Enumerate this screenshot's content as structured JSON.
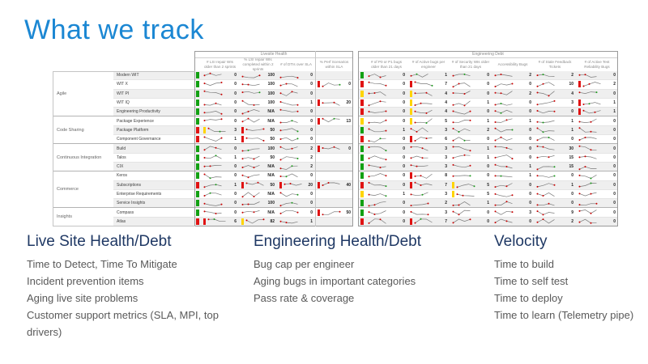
{
  "title": "What we track",
  "colors": {
    "title_blue": "#1b87d3",
    "heading_navy": "#1f3864",
    "body_gray": "#595959",
    "green": "#12a012",
    "red": "#e01212",
    "yellow": "#ffd400"
  },
  "dashboard": {
    "header_groups": [
      {
        "label": "Livesite Health",
        "columns": [
          "# LSI repair WIs older than 2 sprints",
          "% LSI repair WIs completed within 2 sprints",
          "# of DTIs over SLA",
          "% Perf Scenarios within SLA"
        ]
      },
      {
        "label": "Engineering Debt",
        "columns": [
          "# of P0 or P1 bugs older than 21 days",
          "# of Active bugs per engineer",
          "# of Security WIs older than 21 days",
          "Accessibility Bugs",
          "# of Stale Feedback Tickets",
          "# of Active Test Reliability Bugs"
        ]
      }
    ],
    "groups": [
      {
        "label": "Agile",
        "teams": [
          "Modern WIT",
          "WIT X",
          "WIT PI",
          "WIT IQ",
          "Engineering Productivity"
        ]
      },
      {
        "label": "Code Sharing",
        "teams": [
          "Package Experience",
          "Package Platform",
          "Component Governance"
        ]
      },
      {
        "label": "Continuous Integration",
        "teams": [
          "Build",
          "Talos",
          "CIX"
        ]
      },
      {
        "label": "Commerce",
        "teams": [
          "Keros",
          "Subscriptions",
          "Enterprise Requirements",
          "Service Insights"
        ]
      },
      {
        "label": "Insights",
        "teams": [
          "Compass",
          "Atlas"
        ]
      }
    ],
    "rows": [
      {
        "team": "Modern WIT",
        "ls_status": "green",
        "eng_status": "green",
        "ls": [
          {
            "v": "0"
          },
          {
            "v": "100"
          },
          {
            "v": "0"
          },
          null
        ],
        "eng": [
          {
            "v": "0"
          },
          {
            "v": "1"
          },
          {
            "v": "0"
          },
          {
            "v": "2"
          },
          {
            "v": "2"
          },
          {
            "v": "0"
          }
        ]
      },
      {
        "team": "WIT X",
        "ls_status": "green",
        "eng_status": "red",
        "ls": [
          {
            "v": "0"
          },
          {
            "v": "100"
          },
          {
            "v": "0"
          },
          {
            "v": "0",
            "alert": "red"
          }
        ],
        "eng": [
          {
            "v": "0"
          },
          {
            "v": "7",
            "alert": "red"
          },
          {
            "v": "0"
          },
          {
            "v": "0"
          },
          {
            "v": "10"
          },
          {
            "v": "2",
            "alert": "red"
          }
        ]
      },
      {
        "team": "WIT PI",
        "ls_status": "green",
        "eng_status": "yellow",
        "ls": [
          {
            "v": "0"
          },
          {
            "v": "100"
          },
          {
            "v": "0"
          },
          null
        ],
        "eng": [
          {
            "v": "0"
          },
          {
            "v": "4",
            "alert": "yellow"
          },
          {
            "v": "0"
          },
          {
            "v": "2"
          },
          {
            "v": "4"
          },
          {
            "v": "0"
          }
        ]
      },
      {
        "team": "WIT IQ",
        "ls_status": "green",
        "eng_status": "red",
        "ls": [
          {
            "v": "0"
          },
          {
            "v": "100"
          },
          {
            "v": "1"
          },
          {
            "v": "20",
            "alert": "red"
          }
        ],
        "eng": [
          {
            "v": "0"
          },
          {
            "v": "4",
            "alert": "yellow"
          },
          {
            "v": "1"
          },
          {
            "v": "0"
          },
          {
            "v": "3"
          },
          {
            "v": "1",
            "alert": "red"
          }
        ]
      },
      {
        "team": "Engineering Productivity",
        "ls_status": "green",
        "eng_status": "red",
        "ls": [
          {
            "v": "0"
          },
          {
            "v": "N/A"
          },
          {
            "v": "0"
          },
          null
        ],
        "eng": [
          {
            "v": "0"
          },
          {
            "v": "4",
            "alert": "yellow"
          },
          {
            "v": "0"
          },
          {
            "v": "0"
          },
          {
            "v": "0"
          },
          {
            "v": "1",
            "alert": "red"
          }
        ]
      },
      {
        "team": "Package Experience",
        "ls_status": "green",
        "eng_status": "yellow",
        "ls": [
          {
            "v": "0"
          },
          {
            "v": "N/A"
          },
          {
            "v": "0"
          },
          {
            "v": "13",
            "alert": "red"
          }
        ],
        "eng": [
          {
            "v": "0"
          },
          {
            "v": "5",
            "alert": "yellow"
          },
          {
            "v": "1"
          },
          {
            "v": "1"
          },
          {
            "v": "1"
          },
          {
            "v": "0"
          }
        ]
      },
      {
        "team": "Package Platform",
        "ls_status": "red",
        "eng_status": "green",
        "ls": [
          {
            "v": "3",
            "alert": "yellow"
          },
          {
            "v": "50",
            "alert": "red"
          },
          {
            "v": "0"
          },
          null
        ],
        "eng": [
          {
            "v": "1"
          },
          {
            "v": "3"
          },
          {
            "v": "2"
          },
          {
            "v": "0"
          },
          {
            "v": "1"
          },
          {
            "v": "0"
          }
        ]
      },
      {
        "team": "Component Governance",
        "ls_status": "red",
        "eng_status": "red",
        "ls": [
          {
            "v": "1"
          },
          {
            "v": "50",
            "alert": "red"
          },
          {
            "v": "0"
          },
          null
        ],
        "eng": [
          {
            "v": "0"
          },
          {
            "v": "6",
            "alert": "red"
          },
          {
            "v": "0"
          },
          {
            "v": "0"
          },
          {
            "v": "0"
          },
          {
            "v": "0"
          }
        ]
      },
      {
        "team": "Build",
        "ls_status": "green",
        "eng_status": "green",
        "ls": [
          {
            "v": "0"
          },
          {
            "v": "100"
          },
          {
            "v": "2"
          },
          {
            "v": "0",
            "alert": "red"
          }
        ],
        "eng": [
          {
            "v": "0"
          },
          {
            "v": "3"
          },
          {
            "v": "1"
          },
          {
            "v": "0"
          },
          {
            "v": "30"
          },
          {
            "v": "0"
          }
        ]
      },
      {
        "team": "Talos",
        "ls_status": "green",
        "eng_status": "green",
        "ls": [
          {
            "v": "1"
          },
          {
            "v": "50"
          },
          {
            "v": "2"
          },
          null
        ],
        "eng": [
          {
            "v": "0"
          },
          {
            "v": "3"
          },
          {
            "v": "1"
          },
          {
            "v": "0"
          },
          {
            "v": "15"
          },
          {
            "v": "0"
          }
        ]
      },
      {
        "team": "CIX",
        "ls_status": "green",
        "eng_status": "green",
        "ls": [
          {
            "v": "0"
          },
          {
            "v": "N/A"
          },
          {
            "v": "2"
          },
          null
        ],
        "eng": [
          {
            "v": "0"
          },
          {
            "v": "3"
          },
          {
            "v": "0"
          },
          {
            "v": "1"
          },
          {
            "v": "15"
          },
          {
            "v": "0"
          }
        ]
      },
      {
        "team": "Keros",
        "ls_status": "green",
        "eng_status": "green",
        "ls": [
          {
            "v": "0"
          },
          {
            "v": "N/A"
          },
          {
            "v": "0"
          },
          null
        ],
        "eng": [
          {
            "v": "0"
          },
          {
            "v": "8",
            "alert": "red"
          },
          {
            "v": "0"
          },
          {
            "v": "1"
          },
          {
            "v": "0"
          },
          {
            "v": "0"
          }
        ]
      },
      {
        "team": "Subscriptions",
        "ls_status": "red",
        "eng_status": "red",
        "ls": [
          {
            "v": "1"
          },
          {
            "v": "50",
            "alert": "red"
          },
          {
            "v": "20",
            "alert": "red"
          },
          {
            "v": "40",
            "alert": "red"
          }
        ],
        "eng": [
          {
            "v": "0"
          },
          {
            "v": "7",
            "alert": "red"
          },
          {
            "v": "5",
            "alert": "yellow"
          },
          {
            "v": "0"
          },
          {
            "v": "1"
          },
          {
            "v": "0"
          }
        ]
      },
      {
        "team": "Enterprise Requirements",
        "ls_status": "green",
        "eng_status": "yellow",
        "ls": [
          {
            "v": "0"
          },
          {
            "v": "N/A"
          },
          {
            "v": "0"
          },
          null
        ],
        "eng": [
          {
            "v": "1"
          },
          {
            "v": "3"
          },
          {
            "v": "5",
            "alert": "yellow"
          },
          {
            "v": "0"
          },
          {
            "v": "0"
          },
          {
            "v": "0"
          }
        ]
      },
      {
        "team": "Service Insights",
        "ls_status": "green",
        "eng_status": "green",
        "ls": [
          {
            "v": "0"
          },
          {
            "v": "100"
          },
          {
            "v": "0"
          },
          null
        ],
        "eng": [
          {
            "v": "0"
          },
          {
            "v": "2"
          },
          {
            "v": "1"
          },
          {
            "v": "0"
          },
          {
            "v": "0"
          },
          {
            "v": "0"
          }
        ]
      },
      {
        "team": "Compass",
        "ls_status": "green",
        "eng_status": "green",
        "ls": [
          {
            "v": "0"
          },
          {
            "v": "N/A"
          },
          {
            "v": "0"
          },
          {
            "v": "50",
            "alert": "red"
          }
        ],
        "eng": [
          {
            "v": "0"
          },
          {
            "v": "3"
          },
          {
            "v": "0"
          },
          {
            "v": "3"
          },
          {
            "v": "9"
          },
          {
            "v": "0"
          }
        ]
      },
      {
        "team": "Atlas",
        "ls_status": "red",
        "eng_status": "red",
        "ls": [
          {
            "v": "6",
            "alert": "red"
          },
          {
            "v": "82",
            "alert": "yellow"
          },
          {
            "v": "1"
          },
          null
        ],
        "eng": [
          {
            "v": "0"
          },
          {
            "v": "7",
            "alert": "red"
          },
          {
            "v": "0"
          },
          {
            "v": "0"
          },
          {
            "v": "2"
          },
          {
            "v": "0"
          }
        ]
      }
    ]
  },
  "sections": [
    {
      "title": "Live Site Health/Debt",
      "items": [
        "Time to Detect, Time To Mitigate",
        "Incident prevention items",
        "Aging live site problems",
        "Customer support metrics (SLA, MPI, top drivers)"
      ]
    },
    {
      "title": "Engineering Health/Debt",
      "items": [
        "Bug cap per engineer",
        "Aging bugs in important categories",
        "Pass rate & coverage"
      ]
    },
    {
      "title": "Velocity",
      "items": [
        "Time to build",
        "Time to self test",
        "Time to deploy",
        "Time to learn (Telemetry pipe)"
      ]
    }
  ]
}
